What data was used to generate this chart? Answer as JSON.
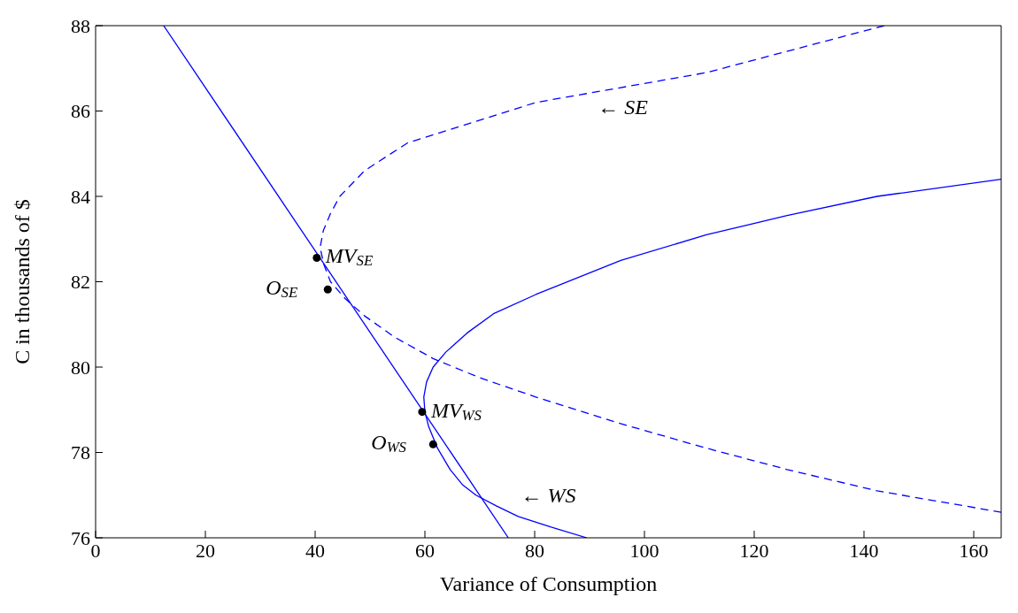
{
  "chart_data": {
    "type": "line",
    "xlabel": "Variance of Consumption",
    "ylabel": "C in thousands of $",
    "xlim": [
      0,
      165
    ],
    "ylim": [
      76,
      88
    ],
    "xticks": [
      0,
      20,
      40,
      60,
      80,
      100,
      120,
      140,
      160
    ],
    "yticks": [
      76,
      78,
      80,
      82,
      84,
      86,
      88
    ],
    "grid": false,
    "marker": "none",
    "series": [
      {
        "color": "#0000ff",
        "line_style": "solid",
        "x": [
          12.4,
          75.2
        ],
        "values": [
          88,
          76
        ]
      },
      {
        "color": "#0000ff",
        "line_style": "dashed",
        "x": [
          143.7,
          111.3,
          80.2,
          56.8,
          49.0,
          44.5,
          42.8,
          41.5,
          40.9,
          41.6,
          42.8,
          45.5,
          49.0,
          54.5,
          61.5,
          70.0,
          80.2,
          95.0,
          111.3,
          126.0,
          142.4,
          165
        ],
        "values": [
          88,
          86.9,
          86.2,
          85.25,
          84.6,
          84.0,
          83.6,
          83.2,
          82.8,
          82.4,
          82.0,
          81.6,
          81.2,
          80.7,
          80.2,
          79.75,
          79.3,
          78.7,
          78.1,
          77.6,
          77.1,
          76.6
        ]
      },
      {
        "color": "#0000ff",
        "line_style": "solid",
        "x": [
          165,
          142.4,
          126.0,
          111.3,
          95.7,
          80.2,
          72.5,
          67.7,
          63.8,
          61.5,
          60.3,
          59.8,
          60.0,
          60.7,
          62.3,
          64.6,
          66.8,
          69.3,
          73.0,
          77.0,
          83.0,
          89.5
        ],
        "values": [
          84.4,
          84.0,
          83.55,
          83.1,
          82.5,
          81.7,
          81.25,
          80.8,
          80.35,
          80.0,
          79.65,
          79.3,
          78.95,
          78.6,
          78.1,
          77.6,
          77.25,
          77.0,
          76.75,
          76.5,
          76.25,
          76.0
        ]
      },
      {
        "type": "scatter",
        "color": "#000000",
        "marker": "circle",
        "x": [
          40.3,
          42.3,
          59.5,
          61.5
        ],
        "values": [
          82.56,
          81.82,
          78.95,
          78.19
        ]
      }
    ],
    "annotations": [
      {
        "text": "MV$_{SE}$",
        "x": 40.3,
        "y": 82.56
      },
      {
        "text": "O$_{SE}$",
        "x": 42.3,
        "y": 81.82
      },
      {
        "text": "MV$_{WS}$",
        "x": 59.5,
        "y": 78.95
      },
      {
        "text": "O$_{WS}$",
        "x": 61.5,
        "y": 78.19
      },
      "← SE",
      "← WS"
    ]
  }
}
